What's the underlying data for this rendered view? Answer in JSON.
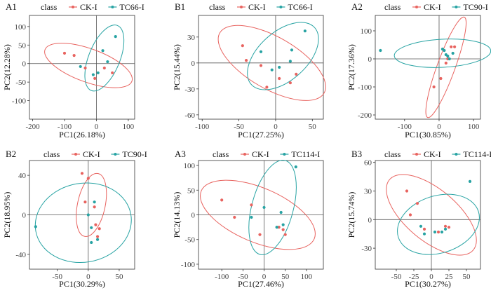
{
  "colors": {
    "ck": "#E8635F",
    "tc": "#27A3A3"
  },
  "chart_data": [
    {
      "id": "A1",
      "panel_label": "A1",
      "type": "scatter",
      "legend_title": "class",
      "series": [
        {
          "name": "CK-I",
          "key": "ck"
        },
        {
          "name": "TC66-I",
          "key": "tc"
        }
      ],
      "xlabel": "PC1(26.18%)",
      "ylabel": "PC2(12.28%)",
      "xlim": [
        -210,
        120
      ],
      "ylim": [
        -150,
        130
      ],
      "xticks": [
        -200,
        -100,
        0,
        100
      ],
      "yticks": [
        -100,
        -50,
        0,
        50,
        100
      ],
      "points": {
        "ck": [
          [
            -100,
            28
          ],
          [
            -70,
            22
          ],
          [
            -35,
            -12
          ],
          [
            -5,
            -40
          ],
          [
            25,
            -12
          ],
          [
            50,
            -25
          ]
        ],
        "tc": [
          [
            -50,
            -8
          ],
          [
            -10,
            -30
          ],
          [
            5,
            -25
          ],
          [
            20,
            35
          ],
          [
            35,
            5
          ],
          [
            60,
            73
          ]
        ]
      },
      "ellipses": {
        "ck": {
          "cx": -25,
          "cy": -5,
          "rx": 145,
          "ry": 45,
          "angle": -20
        },
        "tc": {
          "cx": 25,
          "cy": 15,
          "rx": 110,
          "ry": 42,
          "angle": 68
        }
      }
    },
    {
      "id": "B1",
      "panel_label": "B1",
      "type": "scatter",
      "legend_title": "class",
      "series": [
        {
          "name": "CK-I",
          "key": "ck"
        },
        {
          "name": "TC66-I",
          "key": "tc"
        }
      ],
      "xlabel": "PC1(27.25%)",
      "ylabel": "PC2(15.44%)",
      "xlim": [
        -105,
        65
      ],
      "ylim": [
        -65,
        55
      ],
      "xticks": [
        -100,
        -50,
        0,
        50
      ],
      "yticks": [
        -60,
        -30,
        0,
        30
      ],
      "points": {
        "ck": [
          [
            -45,
            20
          ],
          [
            -40,
            3
          ],
          [
            -20,
            -3
          ],
          [
            -12,
            -28
          ],
          [
            5,
            -18
          ],
          [
            20,
            -23
          ],
          [
            28,
            -13
          ]
        ],
        "tc": [
          [
            -20,
            13
          ],
          [
            -5,
            -8
          ],
          [
            5,
            -5
          ],
          [
            20,
            2
          ],
          [
            22,
            15
          ],
          [
            40,
            37
          ]
        ]
      },
      "ellipses": {
        "ck": {
          "cx": -5,
          "cy": 0,
          "rx": 82,
          "ry": 30,
          "angle": -30
        },
        "tc": {
          "cx": 10,
          "cy": 8,
          "rx": 58,
          "ry": 28,
          "angle": 42
        }
      }
    },
    {
      "id": "A2",
      "panel_label": "A2",
      "type": "scatter",
      "legend_title": "class",
      "series": [
        {
          "name": "CK-I",
          "key": "ck"
        },
        {
          "name": "TC90-I",
          "key": "tc"
        }
      ],
      "xlabel": "PC1(30.85%)",
      "ylabel": "PC2(17.36%)",
      "xlim": [
        -185,
        120
      ],
      "ylim": [
        -215,
        155
      ],
      "xticks": [
        -100,
        0,
        100
      ],
      "yticks": [
        -200,
        -100,
        0,
        100
      ],
      "points": {
        "ck": [
          [
            -15,
            -100
          ],
          [
            5,
            -70
          ],
          [
            20,
            -15
          ],
          [
            25,
            0
          ],
          [
            35,
            43
          ],
          [
            45,
            43
          ]
        ],
        "tc": [
          [
            -170,
            30
          ],
          [
            10,
            35
          ],
          [
            15,
            30
          ],
          [
            20,
            15
          ],
          [
            25,
            10
          ],
          [
            30,
            0
          ],
          [
            40,
            20
          ]
        ]
      },
      "ellipses": {
        "ck": {
          "cx": 20,
          "cy": -30,
          "rx": 155,
          "ry": 32,
          "angle": 70
        },
        "tc": {
          "cx": 10,
          "cy": 20,
          "rx": 140,
          "ry": 50,
          "angle": 3
        }
      }
    },
    {
      "id": "B2",
      "panel_label": "B2",
      "type": "scatter",
      "legend_title": "class",
      "series": [
        {
          "name": "CK-I",
          "key": "ck"
        },
        {
          "name": "TC90-I",
          "key": "tc"
        }
      ],
      "xlabel": "PC1(30.29%)",
      "ylabel": "PC2(18.95%)",
      "xlim": [
        -95,
        75
      ],
      "ylim": [
        -55,
        55
      ],
      "xticks": [
        -50,
        0,
        50
      ],
      "yticks": [
        -40,
        0,
        40
      ],
      "points": {
        "ck": [
          [
            -10,
            42
          ],
          [
            0,
            37
          ],
          [
            -5,
            13
          ],
          [
            10,
            8
          ],
          [
            12,
            -10
          ],
          [
            18,
            -14
          ],
          [
            15,
            -22
          ]
        ],
        "tc": [
          [
            -85,
            -12
          ],
          [
            10,
            13
          ],
          [
            0,
            0
          ],
          [
            5,
            -13
          ],
          [
            5,
            -28
          ],
          [
            15,
            -25
          ]
        ]
      },
      "ellipses": {
        "ck": {
          "cx": 5,
          "cy": 10,
          "rx": 52,
          "ry": 14,
          "angle": 78
        },
        "tc": {
          "cx": -8,
          "cy": -8,
          "rx": 78,
          "ry": 40,
          "angle": 10
        }
      }
    },
    {
      "id": "A3",
      "panel_label": "A3",
      "type": "scatter",
      "legend_title": "class",
      "series": [
        {
          "name": "CK-I",
          "key": "ck"
        },
        {
          "name": "TC114-I",
          "key": "tc"
        }
      ],
      "xlabel": "PC1(27.46%)",
      "ylabel": "PC2(14.13%)",
      "xlim": [
        -155,
        140
      ],
      "ylim": [
        -110,
        110
      ],
      "xticks": [
        -100,
        -50,
        0,
        50,
        100
      ],
      "yticks": [
        -100,
        -50,
        0,
        50,
        100
      ],
      "points": {
        "ck": [
          [
            -100,
            30
          ],
          [
            -70,
            -5
          ],
          [
            -30,
            20
          ],
          [
            -10,
            -40
          ],
          [
            35,
            -25
          ],
          [
            45,
            -30
          ],
          [
            50,
            -40
          ]
        ],
        "tc": [
          [
            -30,
            -5
          ],
          [
            0,
            15
          ],
          [
            30,
            -25
          ],
          [
            40,
            5
          ],
          [
            45,
            -20
          ],
          [
            75,
            97
          ]
        ]
      },
      "ellipses": {
        "ck": {
          "cx": -15,
          "cy": 0,
          "rx": 145,
          "ry": 55,
          "angle": -23
        },
        "tc": {
          "cx": 20,
          "cy": 15,
          "rx": 115,
          "ry": 42,
          "angle": 75
        }
      }
    },
    {
      "id": "B3",
      "panel_label": "B3",
      "type": "scatter",
      "legend_title": "class",
      "series": [
        {
          "name": "CK-I",
          "key": "ck"
        },
        {
          "name": "TC114-I",
          "key": "tc"
        }
      ],
      "xlabel": "PC1(30.27%)",
      "ylabel": "PC2(15.74%)",
      "xlim": [
        -80,
        70
      ],
      "ylim": [
        -52,
        62
      ],
      "xticks": [
        -50,
        -25,
        0,
        25,
        50
      ],
      "yticks": [
        -30,
        0,
        30,
        60
      ],
      "points": {
        "ck": [
          [
            -35,
            30
          ],
          [
            -30,
            5
          ],
          [
            -20,
            17
          ],
          [
            -10,
            -10
          ],
          [
            10,
            -13
          ],
          [
            20,
            -7
          ],
          [
            25,
            -8
          ]
        ],
        "tc": [
          [
            -15,
            -7
          ],
          [
            -10,
            -15
          ],
          [
            5,
            -13
          ],
          [
            15,
            -13
          ],
          [
            20,
            -10
          ],
          [
            55,
            40
          ]
        ]
      },
      "ellipses": {
        "ck": {
          "cx": 0,
          "cy": 5,
          "rx": 78,
          "ry": 27,
          "angle": -40
        },
        "tc": {
          "cx": 10,
          "cy": -5,
          "rx": 60,
          "ry": 30,
          "angle": 18
        }
      }
    }
  ]
}
